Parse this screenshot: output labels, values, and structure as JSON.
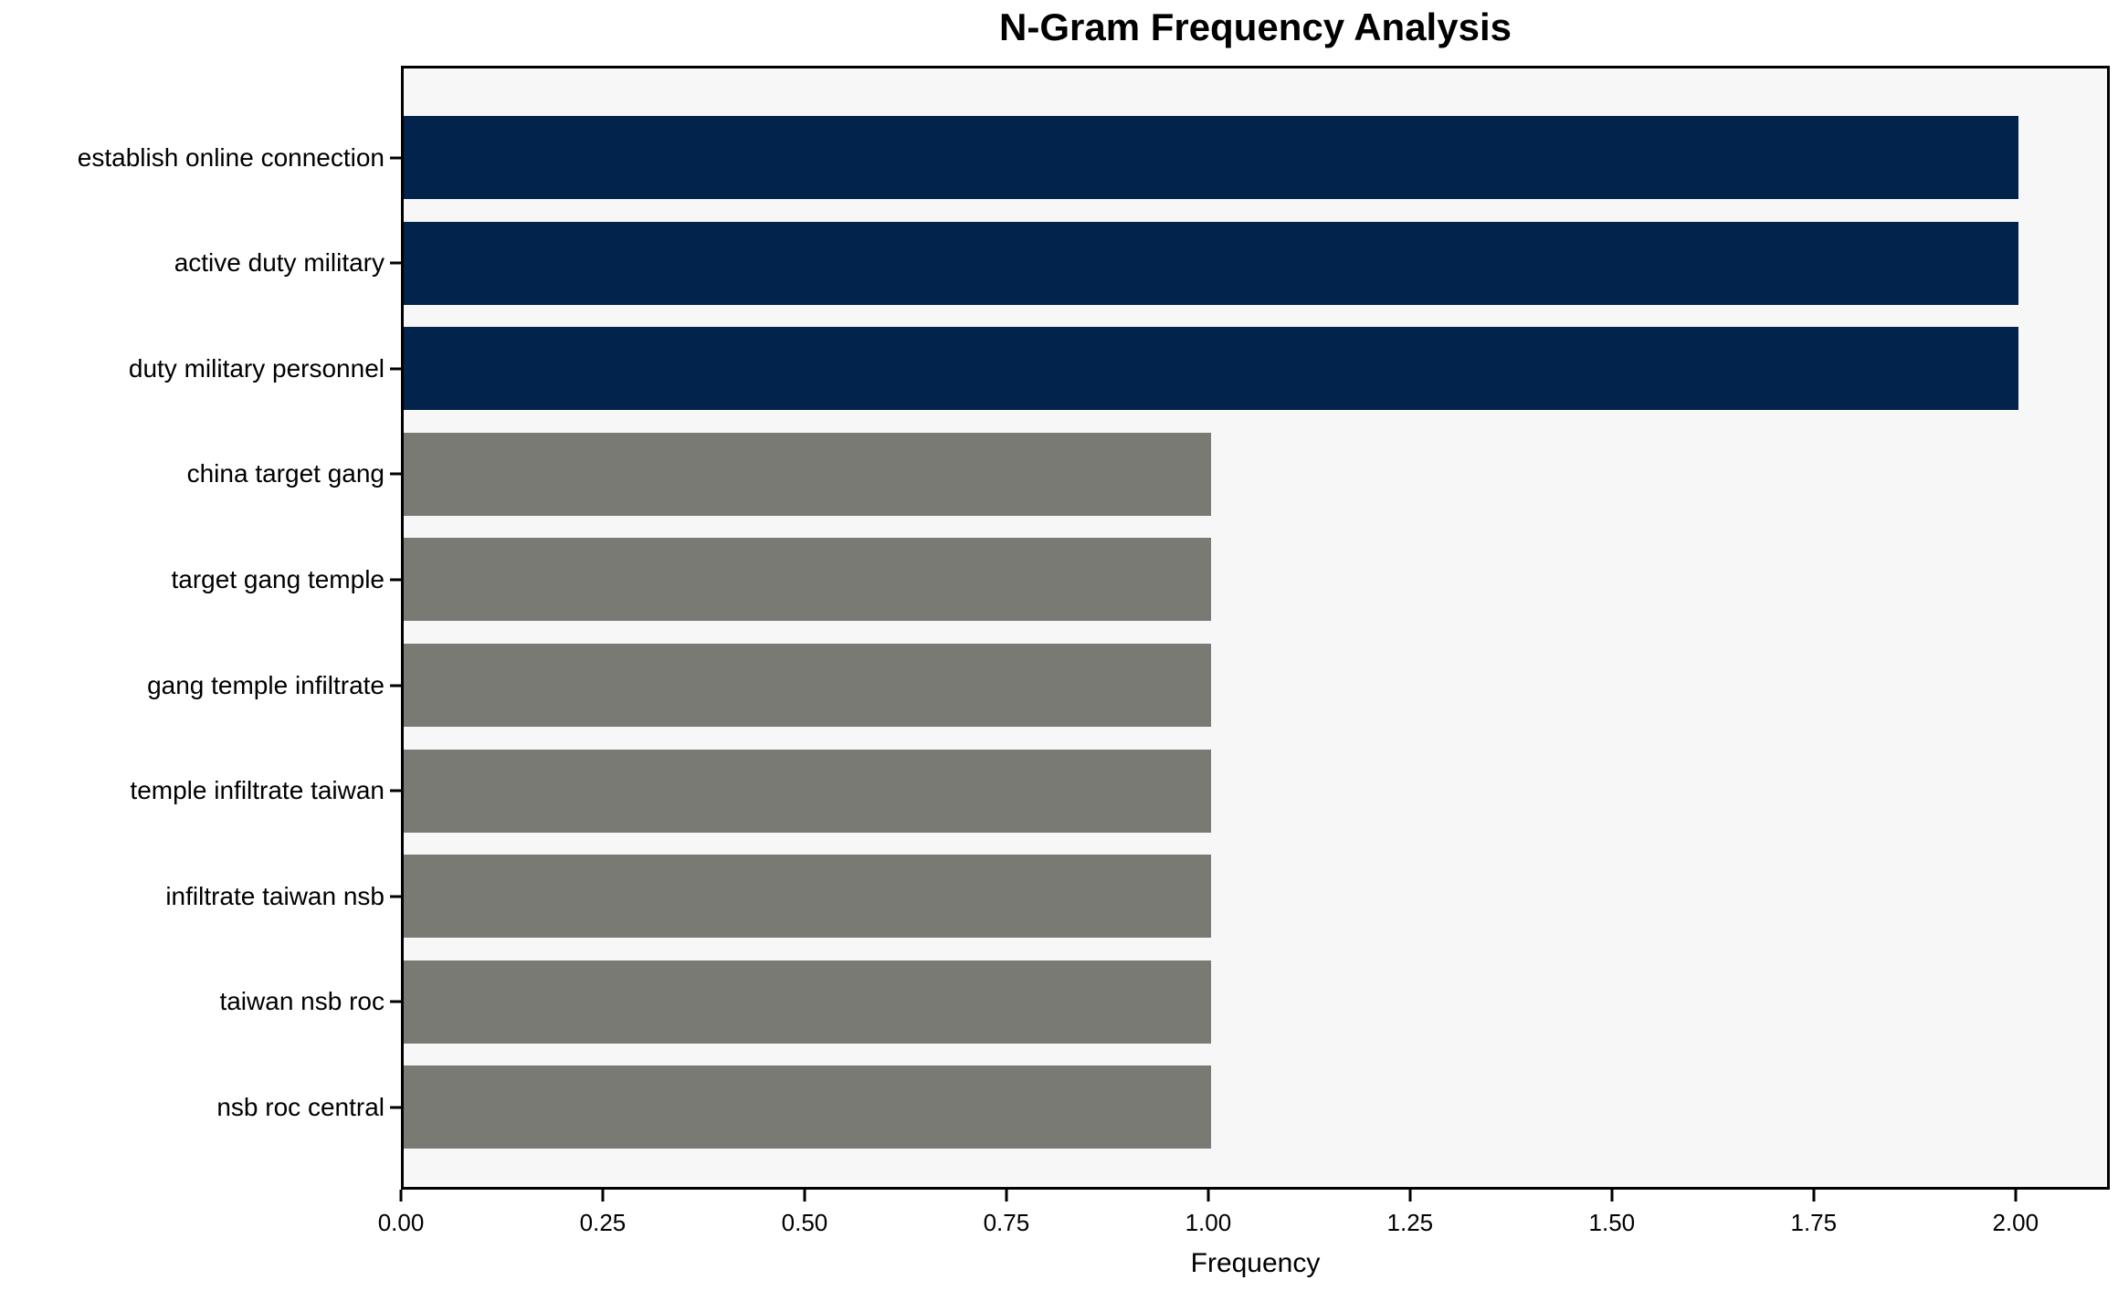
{
  "title": "N-Gram Frequency Analysis",
  "xlabel": "Frequency",
  "colors": {
    "navy_bar": "#02234C",
    "gray_bar": "#7A7A75",
    "plot_background": "#F7F7F7",
    "figure_background": "#FFFFFF",
    "spine": "#000000",
    "text": "#000000"
  },
  "chart_data": {
    "type": "bar",
    "orientation": "horizontal",
    "title": "N-Gram Frequency Analysis",
    "xlabel": "Frequency",
    "ylabel": "",
    "categories": [
      "establish online connection",
      "active duty military",
      "duty military personnel",
      "china target gang",
      "target gang temple",
      "gang temple infiltrate",
      "temple infiltrate taiwan",
      "infiltrate taiwan nsb",
      "taiwan nsb roc",
      "nsb roc central"
    ],
    "values": [
      2,
      2,
      2,
      1,
      1,
      1,
      1,
      1,
      1,
      1
    ],
    "bar_colors": [
      "#02234C",
      "#02234C",
      "#02234C",
      "#7A7A75",
      "#7A7A75",
      "#7A7A75",
      "#7A7A75",
      "#7A7A75",
      "#7A7A75",
      "#7A7A75"
    ],
    "xlim": [
      0,
      2.11
    ],
    "xtick_values": [
      0.0,
      0.25,
      0.5,
      0.75,
      1.0,
      1.25,
      1.5,
      1.75,
      2.0
    ],
    "xtick_labels": [
      "0.00",
      "0.25",
      "0.50",
      "0.75",
      "1.00",
      "1.25",
      "1.50",
      "1.75",
      "2.00"
    ],
    "grid": false,
    "legend": false
  }
}
